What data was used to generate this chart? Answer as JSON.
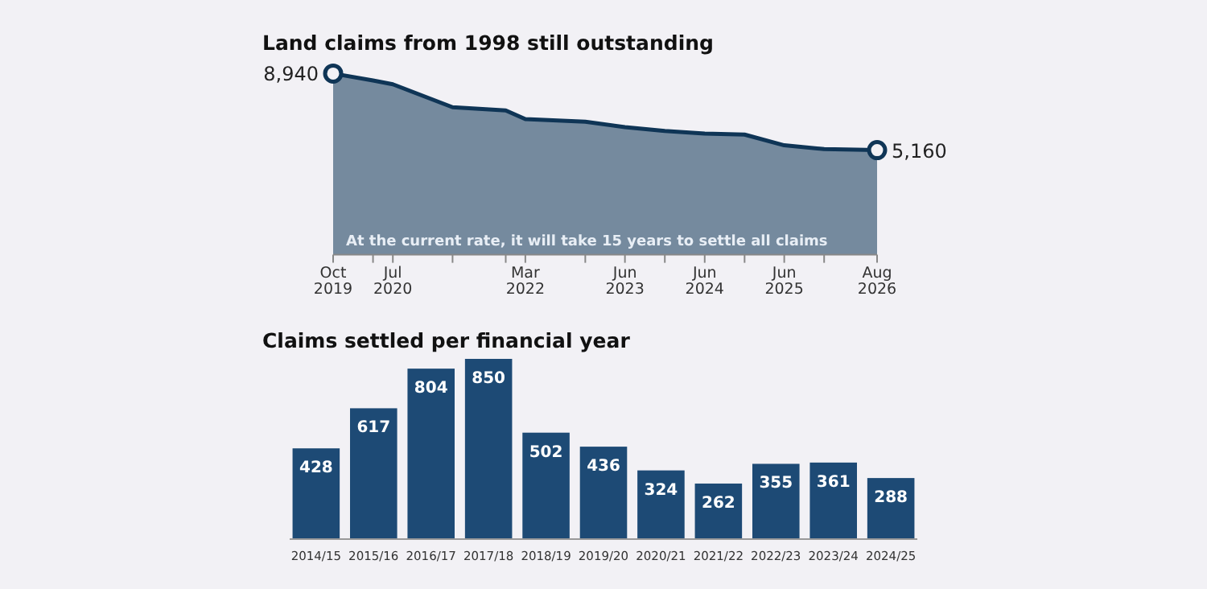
{
  "chart_data": [
    {
      "type": "area",
      "title": "Land claims from 1998 still outstanding",
      "x": [
        "2019-10",
        "2020-04",
        "2020-07",
        "2021-04",
        "2021-12",
        "2022-03",
        "2022-12",
        "2023-06",
        "2023-12",
        "2024-06",
        "2024-12",
        "2025-06",
        "2025-12",
        "2026-08"
      ],
      "series": [
        {
          "color": "#0f3556",
          "values": [
            8940,
            8600,
            8410,
            7280,
            7120,
            6690,
            6560,
            6300,
            6110,
            5980,
            5930,
            5400,
            5210,
            5160
          ],
          "value_labels": [
            "8,940",
            null,
            null,
            null,
            null,
            null,
            null,
            null,
            null,
            null,
            null,
            null,
            null,
            "5,160"
          ]
        }
      ],
      "xlim": [
        "2019-10",
        "2026-08"
      ],
      "xticks": [
        {
          "value": "2019-10",
          "label": "Oct 2019"
        },
        {
          "value": "2020-04",
          "label": null
        },
        {
          "value": "2020-07",
          "label": "Jul 2020"
        },
        {
          "value": "2021-04",
          "label": null
        },
        {
          "value": "2021-12",
          "label": null
        },
        {
          "value": "2022-03",
          "label": "Mar 2022"
        },
        {
          "value": "2022-12",
          "label": null
        },
        {
          "value": "2023-06",
          "label": "Jun 2023"
        },
        {
          "value": "2023-12",
          "label": null
        },
        {
          "value": "2024-06",
          "label": "Jun 2024"
        },
        {
          "value": "2024-12",
          "label": null
        },
        {
          "value": "2025-06",
          "label": "Jun 2025"
        },
        {
          "value": "2025-12",
          "label": null
        },
        {
          "value": "2026-08",
          "label": "Aug 2026"
        }
      ],
      "tick_labels": "x",
      "annotations": [
        "At the current rate, it will take 15 years to settle all claims"
      ]
    },
    {
      "type": "bar",
      "title": "Claims settled per financial year",
      "categories": [
        "2014/15",
        "2015/16",
        "2016/17",
        "2017/18",
        "2018/19",
        "2019/20",
        "2020/21",
        "2021/22",
        "2022/23",
        "2023/24",
        "2024/25"
      ],
      "values": [
        428,
        617,
        804,
        850,
        502,
        436,
        324,
        262,
        355,
        361,
        288
      ],
      "color": "#1d4a75",
      "data_labels": true,
      "tick_labels": "x"
    }
  ]
}
